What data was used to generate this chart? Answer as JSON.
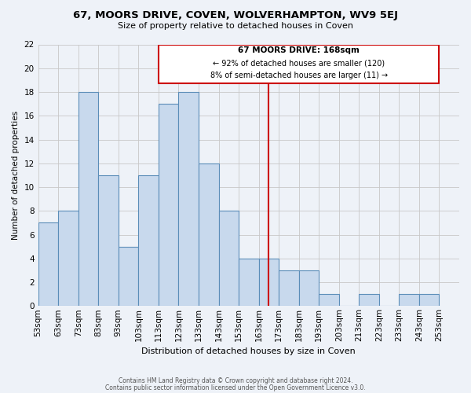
{
  "title": "67, MOORS DRIVE, COVEN, WOLVERHAMPTON, WV9 5EJ",
  "subtitle": "Size of property relative to detached houses in Coven",
  "xlabel": "Distribution of detached houses by size in Coven",
  "ylabel": "Number of detached properties",
  "bin_labels": [
    "53sqm",
    "63sqm",
    "73sqm",
    "83sqm",
    "93sqm",
    "103sqm",
    "113sqm",
    "123sqm",
    "133sqm",
    "143sqm",
    "153sqm",
    "163sqm",
    "173sqm",
    "183sqm",
    "193sqm",
    "203sqm",
    "213sqm",
    "223sqm",
    "233sqm",
    "243sqm",
    "253sqm"
  ],
  "bin_left_edges": [
    53,
    63,
    73,
    83,
    93,
    103,
    113,
    123,
    133,
    143,
    153,
    163,
    173,
    183,
    193,
    203,
    213,
    223,
    233,
    243,
    253
  ],
  "counts": [
    7,
    8,
    18,
    11,
    5,
    11,
    17,
    18,
    12,
    8,
    4,
    4,
    3,
    3,
    1,
    0,
    1,
    0,
    1,
    1
  ],
  "bar_color": "#c8d9ed",
  "bar_edge_color": "#5b8db8",
  "grid_color": "#c8c8c8",
  "bg_color": "#eef2f8",
  "vline_x": 168,
  "vline_color": "#cc0000",
  "ylim": [
    0,
    22
  ],
  "yticks": [
    0,
    2,
    4,
    6,
    8,
    10,
    12,
    14,
    16,
    18,
    20,
    22
  ],
  "annotation_title": "67 MOORS DRIVE: 168sqm",
  "annotation_line1": "← 92% of detached houses are smaller (120)",
  "annotation_line2": "8% of semi-detached houses are larger (11) →",
  "annotation_box_color": "#ffffff",
  "annotation_box_edge": "#cc0000",
  "footnote1": "Contains HM Land Registry data © Crown copyright and database right 2024.",
  "footnote2": "Contains public sector information licensed under the Open Government Licence v3.0."
}
